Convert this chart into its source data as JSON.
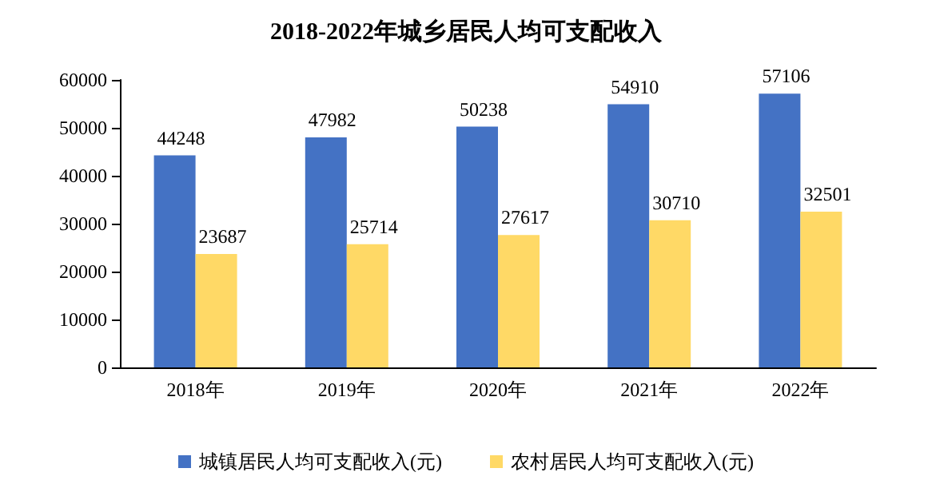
{
  "chart_data": {
    "type": "bar",
    "title": "2018-2022年城乡居民人均可支配收入",
    "categories": [
      "2018年",
      "2019年",
      "2020年",
      "2021年",
      "2022年"
    ],
    "series": [
      {
        "name": "城镇居民人均可支配收入(元)",
        "color": "#4472c4",
        "values": [
          44248,
          47982,
          50238,
          54910,
          57106
        ]
      },
      {
        "name": "农村居民人均可支配收入(元)",
        "color": "#ffd966",
        "values": [
          23687,
          25714,
          27617,
          30710,
          32501
        ]
      }
    ],
    "ylim": [
      0,
      60000
    ],
    "yticks": [
      0,
      10000,
      20000,
      30000,
      40000,
      50000,
      60000
    ],
    "grid": false,
    "legend": "bottom",
    "data_labels": true
  }
}
